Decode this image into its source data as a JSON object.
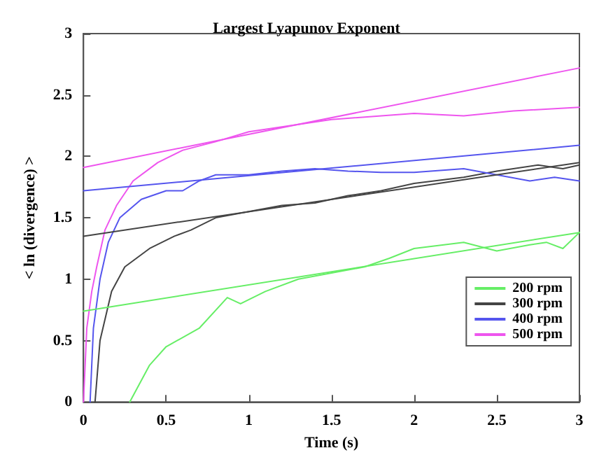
{
  "chart_data": {
    "type": "line",
    "title": "Largest Lyapunov Exponent",
    "xlabel": "Time (s)",
    "ylabel": "< ln (divergence) >",
    "xlim": [
      0,
      3
    ],
    "ylim": [
      0,
      3
    ],
    "xticks": [
      0,
      0.5,
      1,
      1.5,
      2,
      2.5,
      3
    ],
    "yticks": [
      0,
      0.5,
      1,
      1.5,
      2,
      2.5,
      3
    ],
    "grid": false,
    "legend": "bottom right",
    "marker": "none",
    "line_style": "solid",
    "series": [
      {
        "name": "200 rpm",
        "color": "#66ee66",
        "x": [
          0.28,
          0.4,
          0.5,
          0.7,
          0.87,
          0.95,
          1.1,
          1.3,
          1.5,
          1.7,
          1.85,
          2.0,
          2.3,
          2.5,
          2.7,
          2.8,
          2.9,
          3.0
        ],
        "values": [
          0,
          0.3,
          0.45,
          0.6,
          0.85,
          0.8,
          0.9,
          1.0,
          1.05,
          1.1,
          1.17,
          1.25,
          1.3,
          1.23,
          1.28,
          1.3,
          1.25,
          1.38
        ]
      },
      {
        "name": "300 rpm",
        "color": "#444444",
        "x": [
          0.07,
          0.1,
          0.17,
          0.25,
          0.4,
          0.55,
          0.65,
          0.8,
          1.0,
          1.2,
          1.4,
          1.6,
          1.8,
          2.0,
          2.3,
          2.5,
          2.75,
          2.9,
          3.0
        ],
        "values": [
          0,
          0.5,
          0.9,
          1.1,
          1.25,
          1.35,
          1.4,
          1.5,
          1.55,
          1.6,
          1.62,
          1.68,
          1.72,
          1.78,
          1.83,
          1.88,
          1.93,
          1.9,
          1.93
        ]
      },
      {
        "name": "400 rpm",
        "color": "#5555ee",
        "x": [
          0.04,
          0.06,
          0.1,
          0.15,
          0.22,
          0.35,
          0.5,
          0.6,
          0.7,
          0.8,
          1.0,
          1.2,
          1.4,
          1.6,
          1.8,
          2.0,
          2.3,
          2.5,
          2.7,
          2.85,
          3.0
        ],
        "values": [
          0,
          0.6,
          1.0,
          1.3,
          1.5,
          1.65,
          1.72,
          1.72,
          1.8,
          1.85,
          1.85,
          1.88,
          1.9,
          1.88,
          1.87,
          1.87,
          1.9,
          1.85,
          1.8,
          1.83,
          1.8
        ]
      },
      {
        "name": "500 rpm",
        "color": "#ee55ee",
        "x": [
          0,
          0.02,
          0.05,
          0.08,
          0.13,
          0.2,
          0.3,
          0.45,
          0.6,
          0.8,
          1.0,
          1.25,
          1.5,
          2.0,
          2.3,
          2.6,
          3.0
        ],
        "values": [
          0,
          0.6,
          0.9,
          1.1,
          1.4,
          1.6,
          1.8,
          1.95,
          2.05,
          2.12,
          2.2,
          2.25,
          2.3,
          2.35,
          2.33,
          2.37,
          2.4
        ]
      },
      {
        "color": "#66ee66",
        "x": [
          0,
          3
        ],
        "values": [
          0.74,
          1.38
        ]
      },
      {
        "color": "#444444",
        "x": [
          0,
          3
        ],
        "values": [
          1.35,
          1.95
        ]
      },
      {
        "color": "#5555ee",
        "x": [
          0,
          3
        ],
        "values": [
          1.72,
          2.09
        ]
      },
      {
        "color": "#ee55ee",
        "x": [
          0,
          3
        ],
        "values": [
          1.91,
          2.72
        ]
      }
    ]
  }
}
